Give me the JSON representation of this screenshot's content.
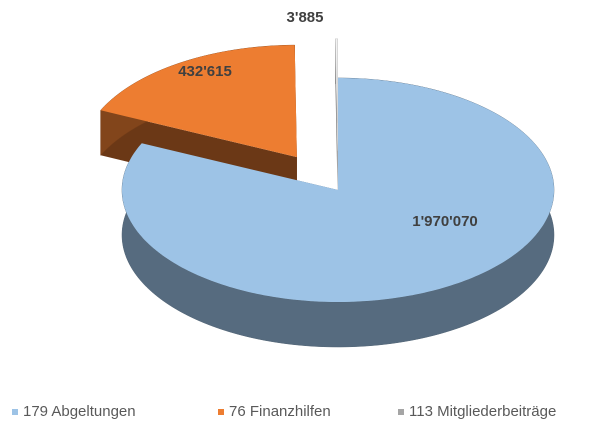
{
  "chart_data": {
    "type": "pie3d",
    "categories": [
      "179 Abgeltungen",
      "76 Finanzhilfen",
      "113 Mitgliederbeiträge"
    ],
    "values": [
      1970070,
      432615,
      3885
    ],
    "value_labels": [
      "1'970'070",
      "432'615",
      "3'885"
    ],
    "colors": [
      "#9dc3e6",
      "#ed7d31",
      "#f2f2f2"
    ],
    "legend_colors": [
      "#9dc3e6",
      "#ed7d31",
      "#a5a5a5"
    ],
    "legend": "bottom"
  }
}
